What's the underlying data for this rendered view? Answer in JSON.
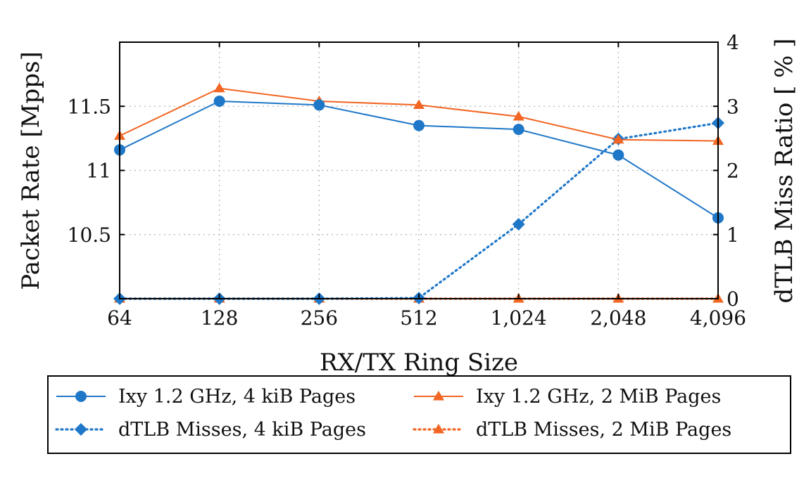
{
  "chart_data": {
    "type": "line",
    "title": "",
    "x": [
      "64",
      "128",
      "256",
      "512",
      "1,024",
      "2,048",
      "4,096"
    ],
    "xlabel": "RX/TX Ring Size",
    "ylabel_left": "Packet Rate [Mpps]",
    "ylabel_right": "dTLB Miss Ratio [ % ]",
    "ylim_left": [
      10.0,
      12.0
    ],
    "ylim_right": [
      0,
      4
    ],
    "yticks_left": [
      "10.5",
      "11",
      "11.5"
    ],
    "yticks_right": [
      "0",
      "1",
      "2",
      "3",
      "4"
    ],
    "grid": true,
    "legend_position": "bottom",
    "series": [
      {
        "name": "Ixy 1.2 GHz, 4 kiB Pages",
        "axis": "left",
        "color": "#1f77c8",
        "marker": "circle",
        "style": "solid",
        "values": [
          11.16,
          11.54,
          11.51,
          11.35,
          11.32,
          11.12,
          10.63
        ]
      },
      {
        "name": "Ixy 1.2 GHz, 2 MiB Pages",
        "axis": "left",
        "color": "#f26522",
        "marker": "triangle",
        "style": "solid",
        "values": [
          11.27,
          11.64,
          11.54,
          11.51,
          11.42,
          11.24,
          11.23
        ]
      },
      {
        "name": "dTLB Misses, 4 kiB Pages",
        "axis": "right",
        "color": "#1f77c8",
        "marker": "diamond",
        "style": "dotted",
        "values": [
          0.0,
          0.0,
          0.0,
          0.01,
          1.16,
          2.49,
          2.74
        ]
      },
      {
        "name": "dTLB Misses, 2 MiB Pages",
        "axis": "right",
        "color": "#f26522",
        "marker": "triangle",
        "style": "dotted",
        "values": [
          0.0,
          0.0,
          0.0,
          0.0,
          0.0,
          0.0,
          0.0
        ]
      }
    ]
  }
}
